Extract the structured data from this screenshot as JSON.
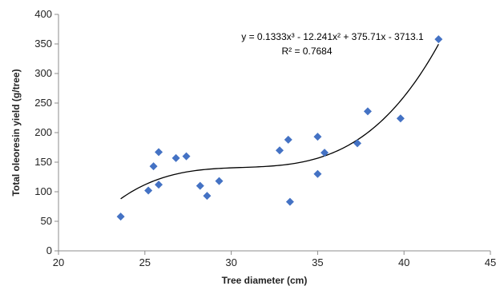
{
  "chart_data": {
    "type": "scatter",
    "title": "",
    "xlabel": "Tree diameter (cm)",
    "ylabel": "Total oleoresin yield (g/tree)",
    "xlim": [
      20,
      45
    ],
    "ylim": [
      0,
      400
    ],
    "x_ticks": [
      20,
      25,
      30,
      35,
      40,
      45
    ],
    "y_ticks": [
      0,
      50,
      100,
      150,
      200,
      250,
      300,
      350,
      400
    ],
    "x_tick_labels": [
      "20",
      "25",
      "30",
      "35",
      "40",
      "45"
    ],
    "y_tick_labels": [
      "0",
      "50",
      "100",
      "150",
      "200",
      "250",
      "300",
      "350",
      "400"
    ],
    "grid": false,
    "legend": "none",
    "marker": "diamond",
    "point_color": "#4472C4",
    "trendline_color": "#000000",
    "series": [
      {
        "x": [
          23.6,
          25.2,
          25.5,
          25.8,
          25.8,
          26.8,
          27.4,
          28.2,
          28.6,
          29.3,
          32.8,
          33.3,
          33.4,
          35.0,
          35.0,
          35.4,
          37.3,
          37.9,
          39.8,
          42.0
        ],
        "y": [
          58,
          102,
          143,
          167,
          112,
          157,
          160,
          110,
          93,
          118,
          170,
          188,
          83,
          193,
          130,
          166,
          182,
          236,
          224,
          358
        ]
      }
    ],
    "trendline": {
      "type": "polynomial",
      "order": 3,
      "coefficients": [
        0.1333,
        -12.241,
        375.71,
        -3713.1
      ],
      "x_range": [
        23.6,
        42.0
      ],
      "equation": "y = 0.1333x³ - 12.241x² + 375.71x - 3713.1",
      "r_squared": "R² = 0.7684"
    }
  }
}
